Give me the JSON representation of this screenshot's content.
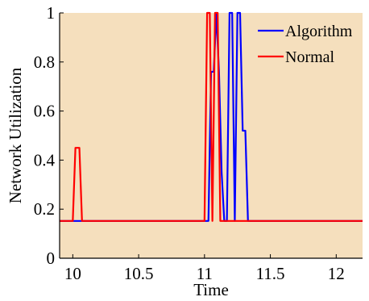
{
  "chart_data": {
    "type": "line",
    "title": "",
    "xlabel": "Time",
    "ylabel": "Network Utilization",
    "xlim": [
      9.9,
      12.2
    ],
    "ylim": [
      0,
      1
    ],
    "xticks": [
      10,
      10.5,
      11,
      11.5,
      12
    ],
    "xtick_labels": [
      "10",
      "10.5",
      "11",
      "11.5",
      "12"
    ],
    "yticks": [
      0,
      0.2,
      0.4,
      0.6,
      0.8,
      1
    ],
    "ytick_labels": [
      "0",
      "0.2",
      "0.4",
      "0.6",
      "0.8",
      "1"
    ],
    "grid": false,
    "legend_position": "top-right",
    "plot_background": "#f5dfbd",
    "series": [
      {
        "name": "Algorithm",
        "color": "#0000ff",
        "x": [
          9.9,
          11.03,
          11.05,
          11.07,
          11.09,
          11.11,
          11.13,
          11.15,
          11.17,
          11.19,
          11.21,
          11.23,
          11.25,
          11.27,
          11.29,
          11.31,
          11.33,
          11.35,
          12.2
        ],
        "y": [
          0.152,
          0.152,
          0.76,
          0.76,
          1.0,
          0.76,
          0.35,
          0.152,
          0.152,
          1.0,
          1.0,
          0.152,
          1.0,
          1.0,
          0.52,
          0.52,
          0.152,
          0.152,
          0.152
        ]
      },
      {
        "name": "Normal",
        "color": "#ff0000",
        "x": [
          9.9,
          10.0,
          10.02,
          10.05,
          10.07,
          11.0,
          11.02,
          11.04,
          11.06,
          11.08,
          11.1,
          11.12,
          11.14,
          11.16,
          12.2
        ],
        "y": [
          0.152,
          0.152,
          0.45,
          0.45,
          0.152,
          0.152,
          1.0,
          1.0,
          0.152,
          1.0,
          1.0,
          0.152,
          0.152,
          0.152,
          0.152
        ]
      }
    ]
  }
}
